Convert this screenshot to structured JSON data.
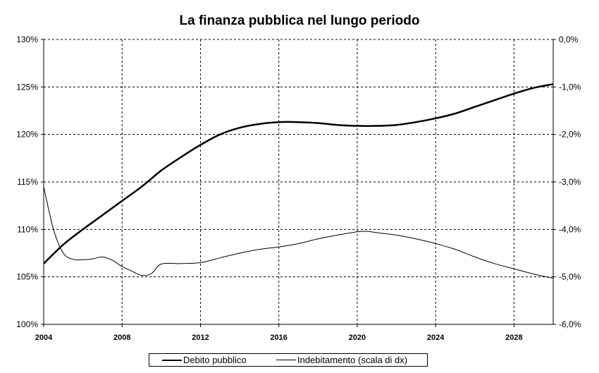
{
  "chart_data": {
    "type": "line",
    "title": "La finanza pubblica nel lungo periodo",
    "x_ticks": [
      "2004",
      "2008",
      "2012",
      "2016",
      "2020",
      "2024",
      "2028"
    ],
    "xlim": [
      2004,
      2030
    ],
    "y_left": {
      "ticks": [
        "100%",
        "105%",
        "110%",
        "115%",
        "120%",
        "125%",
        "130%"
      ],
      "range": [
        100,
        130
      ]
    },
    "y_right": {
      "ticks": [
        "-6,0%",
        "-5,0%",
        "-4,0%",
        "-3,0%",
        "-2,0%",
        "-1,0%",
        "0,0%"
      ],
      "range": [
        -6,
        0
      ]
    },
    "grid": "dashed",
    "legend_position": "bottom",
    "series": [
      {
        "name": "Debito pubblico",
        "axis": "left",
        "color": "#000000",
        "weight": "thick",
        "x": [
          2004,
          2005,
          2006,
          2007,
          2008,
          2009,
          2010,
          2011,
          2012,
          2013,
          2014,
          2015,
          2016,
          2017,
          2018,
          2019,
          2020,
          2021,
          2022,
          2023,
          2024,
          2025,
          2026,
          2027,
          2028,
          2029,
          2030
        ],
        "y": [
          106.4,
          108.4,
          110.0,
          111.5,
          113.0,
          114.5,
          116.2,
          117.6,
          118.9,
          120.0,
          120.7,
          121.1,
          121.3,
          121.3,
          121.2,
          121.0,
          120.9,
          120.9,
          121.0,
          121.3,
          121.7,
          122.2,
          122.9,
          123.6,
          124.3,
          124.9,
          125.3
        ]
      },
      {
        "name": "Indebitamento (scala di dx)",
        "axis": "right",
        "color": "#000000",
        "weight": "thin",
        "x": [
          2004,
          2004.5,
          2005,
          2005.5,
          2006,
          2006.5,
          2007,
          2007.5,
          2008,
          2008.5,
          2009,
          2009.5,
          2010,
          2011,
          2012,
          2013,
          2014,
          2015,
          2016,
          2017,
          2018,
          2019,
          2020,
          2020.5,
          2021,
          2022,
          2023,
          2024,
          2025,
          2026,
          2027,
          2028,
          2029,
          2030
        ],
        "y": [
          -3.1,
          -4.0,
          -4.5,
          -4.63,
          -4.64,
          -4.62,
          -4.58,
          -4.65,
          -4.78,
          -4.88,
          -4.97,
          -4.93,
          -4.73,
          -4.72,
          -4.7,
          -4.6,
          -4.5,
          -4.42,
          -4.37,
          -4.3,
          -4.2,
          -4.12,
          -4.05,
          -4.04,
          -4.07,
          -4.12,
          -4.2,
          -4.3,
          -4.42,
          -4.58,
          -4.72,
          -4.83,
          -4.94,
          -5.03
        ]
      }
    ]
  }
}
